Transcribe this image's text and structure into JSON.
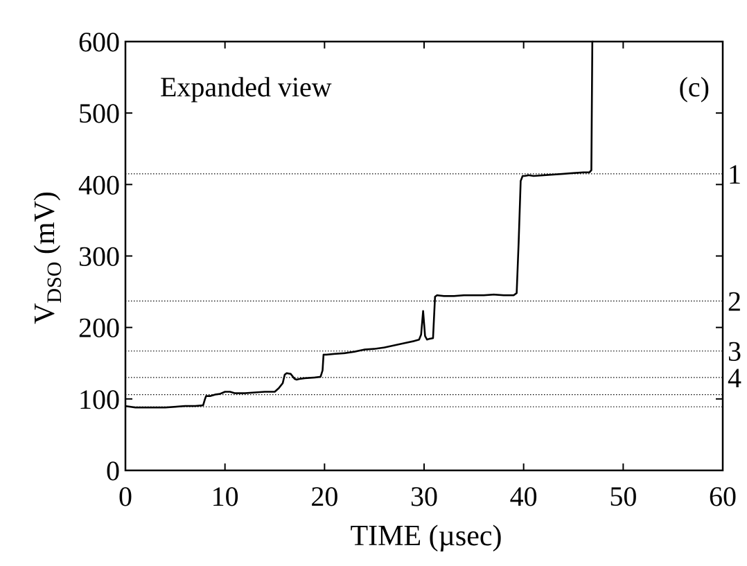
{
  "chart_data": {
    "type": "line",
    "xlabel": "TIME (µsec)",
    "ylabel_main": "V",
    "ylabel_sub": "DSO",
    "ylabel_unit": " (mV)",
    "xlim": [
      0,
      60
    ],
    "ylim": [
      0,
      600
    ],
    "xticks": [
      0,
      10,
      20,
      30,
      40,
      50,
      60
    ],
    "yticks": [
      0,
      100,
      200,
      300,
      400,
      500,
      600
    ],
    "grid": false,
    "annotations": [
      {
        "text": "Expanded view"
      },
      {
        "text": "(c)"
      }
    ],
    "reference_levels": [
      {
        "label": "1",
        "y": 415
      },
      {
        "label": "2",
        "y": 237
      },
      {
        "label": "3",
        "y": 167
      },
      {
        "label": "4",
        "y": 130
      },
      {
        "label": "",
        "y": 106
      },
      {
        "label": "",
        "y": 89
      }
    ],
    "series": [
      {
        "x": [
          0,
          1,
          2,
          3,
          4,
          5,
          6,
          7,
          7.8,
          8.0,
          8.1,
          8.5,
          9,
          9.5,
          10,
          10.5,
          11,
          12,
          13,
          14,
          15,
          15.4,
          15.8,
          16.0,
          16.2,
          16.6,
          17.0,
          17.2,
          17.5,
          18,
          19,
          19.6,
          19.8,
          19.9,
          20.2,
          21,
          22,
          23,
          24,
          25,
          26,
          27,
          28,
          29,
          29.5,
          29.7,
          29.9,
          30.1,
          30.3,
          30.5,
          30.9,
          31.1,
          31.3,
          32,
          33,
          34,
          35,
          36,
          37,
          38,
          39,
          39.3,
          39.5,
          39.7,
          39.9,
          40.1,
          40.5,
          41,
          42,
          43,
          44,
          45,
          46,
          46.6,
          46.8,
          46.9,
          47.0
        ],
        "y": [
          90,
          88,
          88,
          88,
          88,
          89,
          90,
          90,
          91,
          100,
          104,
          104,
          106,
          107,
          110,
          110,
          108,
          108,
          109,
          110,
          110,
          115,
          122,
          134,
          136,
          135,
          128,
          127,
          128,
          129,
          130,
          131,
          140,
          162,
          162,
          163,
          164,
          166,
          169,
          170,
          172,
          175,
          178,
          181,
          183,
          190,
          223,
          188,
          183,
          184,
          185,
          243,
          245,
          244,
          244,
          245,
          245,
          245,
          246,
          245,
          245,
          248,
          320,
          405,
          412,
          412,
          413,
          412,
          413,
          414,
          415,
          416,
          417,
          417,
          420,
          600,
          600
        ]
      }
    ]
  }
}
